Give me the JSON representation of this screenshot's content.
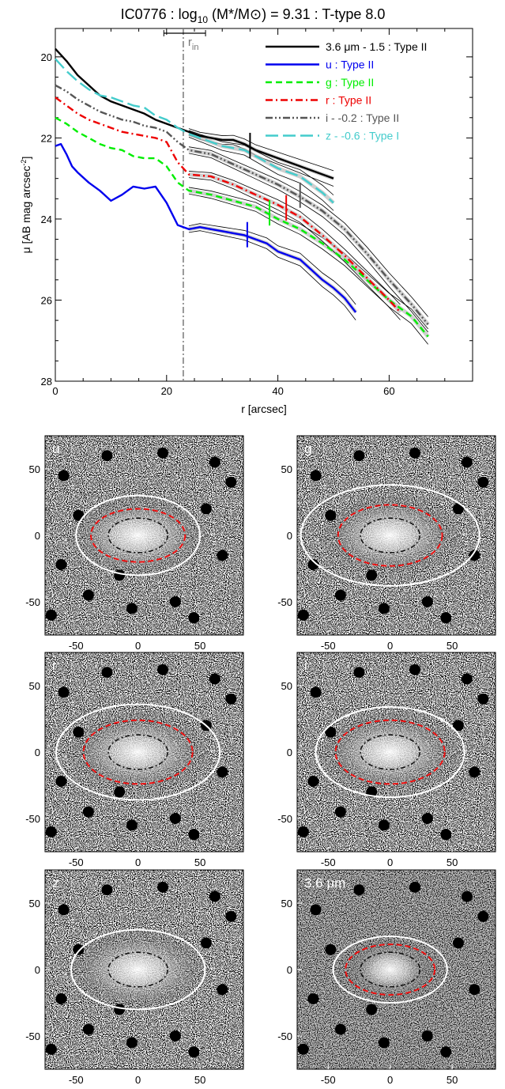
{
  "chart_data": [
    {
      "type": "line",
      "title": "IC0776 : log10 (M*/M⊙) = 9.31 : T-type 8.0",
      "title_parts": {
        "main": "IC0776 : log",
        "sub": "10",
        "rest": " (M*/M⊙) = 9.31 : T-type 8.0"
      },
      "xlabel": "r [arcsec]",
      "ylabel": "μ [AB mag arcsec⁻²]",
      "ylabel_parts": {
        "main": "μ [AB mag arcsec",
        "sup": "-2",
        "end": "]"
      },
      "xlim": [
        0,
        75
      ],
      "ylim": [
        28,
        19.3
      ],
      "xticks": [
        0,
        20,
        40,
        60
      ],
      "yticks": [
        20,
        22,
        24,
        26,
        28
      ],
      "r_in": {
        "label": "r",
        "sub": "in",
        "x": 23,
        "error": [
          19.5,
          27
        ]
      },
      "legend_position": "top-right",
      "series": [
        {
          "name": "3.6 μm - 1.5 : Type II",
          "color": "#000000",
          "dash": "solid",
          "break_r": 35,
          "x": [
            0,
            2,
            4,
            6,
            8,
            10,
            12,
            14,
            16,
            18,
            20,
            22,
            24,
            26,
            28,
            30,
            32,
            34,
            36,
            38,
            40,
            42,
            44,
            46,
            48,
            50
          ],
          "y": [
            19.8,
            20.1,
            20.45,
            20.7,
            20.95,
            21.1,
            21.2,
            21.3,
            21.4,
            21.55,
            21.65,
            21.75,
            21.85,
            21.95,
            22.0,
            22.05,
            22.05,
            22.15,
            22.3,
            22.4,
            22.5,
            22.6,
            22.7,
            22.8,
            22.9,
            23.0
          ]
        },
        {
          "name": "u : Type II",
          "color": "#0000ee",
          "dash": "solid",
          "break_r": 34.5,
          "x": [
            0,
            1,
            2,
            3,
            4,
            6,
            8,
            10,
            12,
            14,
            16,
            18,
            20,
            22,
            24,
            26,
            28,
            30,
            32,
            34,
            36,
            38,
            40,
            42,
            44,
            46,
            48,
            50,
            52,
            54
          ],
          "y": [
            22.2,
            22.15,
            22.4,
            22.7,
            22.85,
            23.1,
            23.3,
            23.55,
            23.4,
            23.2,
            23.25,
            23.2,
            23.6,
            24.15,
            24.25,
            24.2,
            24.25,
            24.3,
            24.35,
            24.4,
            24.5,
            24.6,
            24.8,
            24.9,
            25.0,
            25.25,
            25.5,
            25.7,
            25.95,
            26.3
          ]
        },
        {
          "name": "g : Type II",
          "color": "#00ee00",
          "dash": "dashed",
          "break_r": 38.5,
          "x": [
            0,
            2,
            4,
            6,
            8,
            10,
            12,
            14,
            16,
            18,
            20,
            22,
            24,
            28,
            32,
            36,
            40,
            44,
            48,
            52,
            56,
            60,
            64,
            67
          ],
          "y": [
            21.5,
            21.65,
            21.85,
            22.0,
            22.15,
            22.25,
            22.3,
            22.45,
            22.5,
            22.5,
            22.7,
            23.1,
            23.3,
            23.4,
            23.55,
            23.7,
            24.0,
            24.25,
            24.6,
            25.0,
            25.5,
            26.0,
            26.4,
            26.9
          ]
        },
        {
          "name": "r : Type II",
          "color": "#ee0000",
          "dash": "dashdot",
          "break_r": 41.5,
          "x": [
            0,
            2,
            4,
            6,
            8,
            10,
            12,
            14,
            16,
            18,
            20,
            22,
            24,
            28,
            32,
            36,
            40,
            44,
            48,
            52,
            56,
            60,
            62
          ],
          "y": [
            21.0,
            21.2,
            21.4,
            21.55,
            21.65,
            21.75,
            21.85,
            21.9,
            21.95,
            22.0,
            22.1,
            22.6,
            22.9,
            22.95,
            23.15,
            23.4,
            23.65,
            23.95,
            24.4,
            24.9,
            25.45,
            26.0,
            26.3
          ]
        },
        {
          "name": "i - -0.2 : Type II",
          "color": "#555555",
          "dash": "dashdotdot",
          "break_r": 44,
          "x": [
            0,
            2,
            4,
            6,
            8,
            10,
            12,
            14,
            16,
            18,
            20,
            22,
            24,
            28,
            32,
            36,
            40,
            44,
            48,
            52,
            56,
            60,
            64,
            67
          ],
          "y": [
            20.7,
            20.85,
            21.05,
            21.2,
            21.35,
            21.45,
            21.55,
            21.6,
            21.7,
            21.75,
            21.85,
            22.1,
            22.3,
            22.4,
            22.65,
            22.9,
            23.15,
            23.45,
            23.8,
            24.25,
            24.85,
            25.5,
            26.1,
            26.6
          ]
        },
        {
          "name": "z - -0.6 : Type I",
          "color": "#44cccc",
          "dash": "longdash",
          "break_r": null,
          "x": [
            0,
            2,
            4,
            6,
            8,
            10,
            12,
            14,
            16,
            18,
            20,
            22,
            24,
            26,
            28,
            30,
            32,
            34,
            36,
            38,
            40,
            42,
            44,
            46,
            48,
            50
          ],
          "y": [
            20.05,
            20.35,
            20.6,
            20.8,
            20.95,
            21.0,
            21.1,
            21.2,
            21.25,
            21.45,
            21.55,
            21.75,
            21.9,
            22.0,
            22.1,
            22.2,
            22.25,
            22.3,
            22.45,
            22.6,
            22.75,
            22.85,
            22.95,
            23.15,
            23.35,
            23.6
          ]
        }
      ]
    },
    {
      "type": "image-grid",
      "xticks": [
        -50,
        0,
        50
      ],
      "yticks": [
        50,
        0,
        -50
      ],
      "xlim": [
        -75,
        85
      ],
      "ylim": [
        -75,
        75
      ],
      "panels": [
        {
          "label": "u",
          "bg": "noisy",
          "outer_ellipse": [
            50,
            30
          ],
          "red_ellipse": [
            38,
            20
          ],
          "inner_ellipse": [
            24,
            13
          ]
        },
        {
          "label": "g",
          "bg": "noisy",
          "outer_ellipse": [
            72,
            38
          ],
          "red_ellipse": [
            42,
            23
          ],
          "inner_ellipse": [
            24,
            13
          ]
        },
        {
          "label": "r",
          "bg": "noisy",
          "outer_ellipse": [
            66,
            36
          ],
          "red_ellipse": [
            44,
            24
          ],
          "inner_ellipse": [
            24,
            13
          ]
        },
        {
          "label": "i",
          "bg": "noisy",
          "outer_ellipse": [
            60,
            34
          ],
          "red_ellipse": [
            44,
            24
          ],
          "inner_ellipse": [
            24,
            13
          ]
        },
        {
          "label": "z",
          "bg": "noisy",
          "outer_ellipse": [
            54,
            30
          ],
          "red_ellipse": null,
          "inner_ellipse": [
            24,
            13
          ]
        },
        {
          "label": "3.6 μm",
          "bg": "dark",
          "outer_ellipse": [
            46,
            25
          ],
          "red_ellipse": [
            36,
            19
          ],
          "inner_ellipse": [
            24,
            13
          ]
        }
      ]
    }
  ]
}
